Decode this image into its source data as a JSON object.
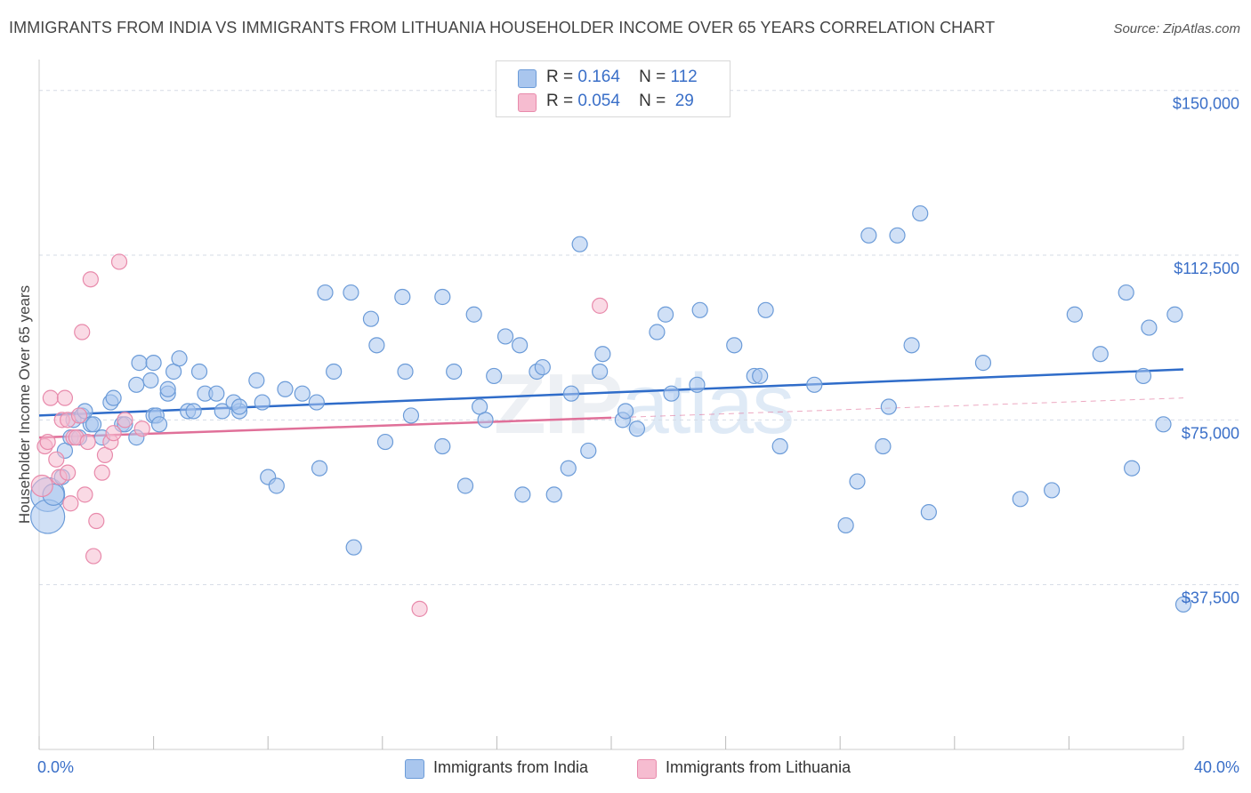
{
  "header": {
    "title": "IMMIGRANTS FROM INDIA VS IMMIGRANTS FROM LITHUANIA HOUSEHOLDER INCOME OVER 65 YEARS CORRELATION CHART",
    "source": "Source: ZipAtlas.com"
  },
  "watermark": {
    "zip": "ZIP",
    "atlas": "atlas"
  },
  "stats": {
    "india": {
      "r_label": "R =",
      "r_value": "0.164",
      "n_label": "N =",
      "n_value": "112"
    },
    "lithuania": {
      "r_label": "R =",
      "r_value": "0.054",
      "n_label": "N =",
      "n_value": "29"
    }
  },
  "legend": {
    "india": "Immigrants from India",
    "lithuania": "Immigrants from Lithuania"
  },
  "colors": {
    "india_fill": "#a9c6ee",
    "india_stroke": "#6b9bd8",
    "india_line": "#2f6cc9",
    "lith_fill": "#f6bcd0",
    "lith_stroke": "#e88aab",
    "lith_line": "#e07099",
    "axis_text": "#3a6fc8",
    "grid": "#d5dbe6"
  },
  "chart_data": {
    "type": "scatter",
    "title": "IMMIGRANTS FROM INDIA VS IMMIGRANTS FROM LITHUANIA HOUSEHOLDER INCOME OVER 65 YEARS CORRELATION CHART",
    "xlabel": "",
    "ylabel": "Householder Income Over 65 years",
    "xlim": [
      0,
      40
    ],
    "ylim": [
      0,
      155000
    ],
    "x_tick_labels": [
      {
        "value": 0,
        "label": "0.0%"
      },
      {
        "value": 40,
        "label": "40.0%"
      }
    ],
    "y_tick_labels": [
      {
        "value": 37500,
        "label": "$37,500"
      },
      {
        "value": 75000,
        "label": "$75,000"
      },
      {
        "value": 112500,
        "label": "$112,500"
      },
      {
        "value": 150000,
        "label": "$150,000"
      }
    ],
    "series": [
      {
        "name": "Immigrants from India",
        "r": 0.164,
        "n": 112,
        "trend": {
          "x": [
            0,
            40
          ],
          "y": [
            76000,
            86500
          ]
        },
        "points": [
          [
            0.3,
            58000,
            3
          ],
          [
            0.3,
            53000,
            3
          ],
          [
            0.5,
            58000,
            2
          ],
          [
            0.8,
            62000,
            1
          ],
          [
            0.9,
            68000,
            1
          ],
          [
            1.1,
            71000,
            1
          ],
          [
            1.4,
            71000,
            1
          ],
          [
            1.2,
            75000,
            1
          ],
          [
            1.5,
            76000,
            1
          ],
          [
            1.6,
            77000,
            1
          ],
          [
            1.8,
            74000,
            1
          ],
          [
            1.9,
            74000,
            1
          ],
          [
            2.2,
            71000,
            1
          ],
          [
            2.5,
            79000,
            1
          ],
          [
            2.6,
            80000,
            1
          ],
          [
            2.9,
            74000,
            1
          ],
          [
            3.4,
            71000,
            1
          ],
          [
            3.0,
            74000,
            1
          ],
          [
            3.4,
            83000,
            1
          ],
          [
            3.5,
            88000,
            1
          ],
          [
            3.9,
            84000,
            1
          ],
          [
            4.0,
            88000,
            1
          ],
          [
            4.0,
            76000,
            1
          ],
          [
            4.1,
            76000,
            1
          ],
          [
            4.2,
            74000,
            1
          ],
          [
            4.5,
            81000,
            1
          ],
          [
            4.5,
            82000,
            1
          ],
          [
            4.7,
            86000,
            1
          ],
          [
            4.9,
            89000,
            1
          ],
          [
            5.2,
            77000,
            1
          ],
          [
            5.4,
            77000,
            1
          ],
          [
            5.6,
            86000,
            1
          ],
          [
            5.8,
            81000,
            1
          ],
          [
            6.2,
            81000,
            1
          ],
          [
            6.4,
            77000,
            1
          ],
          [
            7.0,
            77000,
            1
          ],
          [
            6.8,
            79000,
            1
          ],
          [
            7.0,
            78000,
            1
          ],
          [
            7.6,
            84000,
            1
          ],
          [
            7.8,
            79000,
            1
          ],
          [
            8.0,
            62000,
            1
          ],
          [
            8.3,
            60000,
            1
          ],
          [
            8.6,
            82000,
            1
          ],
          [
            9.2,
            81000,
            1
          ],
          [
            9.7,
            79000,
            1
          ],
          [
            9.8,
            64000,
            1
          ],
          [
            10.0,
            104000,
            1
          ],
          [
            10.3,
            86000,
            1
          ],
          [
            10.9,
            104000,
            1
          ],
          [
            11.0,
            46000,
            1
          ],
          [
            11.6,
            98000,
            1
          ],
          [
            11.8,
            92000,
            1
          ],
          [
            12.1,
            70000,
            1
          ],
          [
            12.7,
            103000,
            1
          ],
          [
            12.8,
            86000,
            1
          ],
          [
            13.0,
            76000,
            1
          ],
          [
            14.1,
            103000,
            1
          ],
          [
            14.1,
            69000,
            1
          ],
          [
            14.5,
            86000,
            1
          ],
          [
            14.9,
            60000,
            1
          ],
          [
            15.2,
            99000,
            1
          ],
          [
            15.4,
            78000,
            1
          ],
          [
            15.6,
            75000,
            1
          ],
          [
            15.9,
            85000,
            1
          ],
          [
            16.3,
            94000,
            1
          ],
          [
            16.8,
            92000,
            1
          ],
          [
            16.9,
            58000,
            1
          ],
          [
            17.4,
            86000,
            1
          ],
          [
            17.6,
            87000,
            1
          ],
          [
            18.0,
            58000,
            1
          ],
          [
            18.5,
            64000,
            1
          ],
          [
            18.6,
            81000,
            1
          ],
          [
            18.9,
            115000,
            1
          ],
          [
            19.2,
            68000,
            1
          ],
          [
            19.6,
            86000,
            1
          ],
          [
            19.7,
            90000,
            1
          ],
          [
            20.4,
            75000,
            1
          ],
          [
            20.5,
            77000,
            1
          ],
          [
            20.9,
            73000,
            1
          ],
          [
            21.6,
            95000,
            1
          ],
          [
            21.9,
            99000,
            1
          ],
          [
            22.1,
            81000,
            1
          ],
          [
            23.0,
            83000,
            1
          ],
          [
            23.1,
            100000,
            1
          ],
          [
            24.3,
            92000,
            1
          ],
          [
            25.0,
            85000,
            1
          ],
          [
            25.2,
            85000,
            1
          ],
          [
            25.4,
            100000,
            1
          ],
          [
            25.9,
            69000,
            1
          ],
          [
            27.1,
            83000,
            1
          ],
          [
            28.2,
            51000,
            1
          ],
          [
            28.6,
            61000,
            1
          ],
          [
            29.0,
            117000,
            1
          ],
          [
            29.5,
            69000,
            1
          ],
          [
            29.7,
            78000,
            1
          ],
          [
            30.0,
            117000,
            1
          ],
          [
            30.5,
            92000,
            1
          ],
          [
            30.8,
            122000,
            1
          ],
          [
            31.1,
            54000,
            1
          ],
          [
            33.0,
            88000,
            1
          ],
          [
            34.3,
            57000,
            1
          ],
          [
            35.4,
            59000,
            1
          ],
          [
            36.2,
            99000,
            1
          ],
          [
            37.1,
            90000,
            1
          ],
          [
            38.0,
            104000,
            1
          ],
          [
            38.2,
            64000,
            1
          ],
          [
            38.6,
            85000,
            1
          ],
          [
            38.8,
            96000,
            1
          ],
          [
            39.3,
            74000,
            1
          ],
          [
            39.7,
            99000,
            1
          ],
          [
            40.0,
            33000,
            1
          ]
        ]
      },
      {
        "name": "Immigrants from Lithuania",
        "r": 0.054,
        "n": 29,
        "trend": {
          "x": [
            0,
            20
          ],
          "y": [
            71000,
            75500
          ]
        },
        "dashed_extension": {
          "x": [
            20,
            40
          ],
          "y": [
            75500,
            80000
          ]
        },
        "points": [
          [
            0.1,
            60000,
            2
          ],
          [
            0.2,
            69000,
            1
          ],
          [
            0.3,
            70000,
            1
          ],
          [
            0.4,
            80000,
            1
          ],
          [
            0.6,
            66000,
            1
          ],
          [
            0.7,
            62000,
            1
          ],
          [
            0.8,
            75000,
            1
          ],
          [
            0.9,
            80000,
            1
          ],
          [
            1.0,
            75000,
            1
          ],
          [
            1.0,
            63000,
            1
          ],
          [
            1.1,
            56000,
            1
          ],
          [
            1.2,
            71000,
            1
          ],
          [
            1.3,
            71000,
            1
          ],
          [
            1.4,
            76000,
            1
          ],
          [
            1.5,
            95000,
            1
          ],
          [
            1.6,
            58000,
            1
          ],
          [
            1.7,
            70000,
            1
          ],
          [
            1.8,
            107000,
            1
          ],
          [
            1.9,
            44000,
            1
          ],
          [
            2.0,
            52000,
            1
          ],
          [
            2.2,
            63000,
            1
          ],
          [
            2.3,
            67000,
            1
          ],
          [
            2.5,
            70000,
            1
          ],
          [
            2.8,
            111000,
            1
          ],
          [
            3.0,
            75000,
            1
          ],
          [
            3.6,
            73000,
            1
          ],
          [
            13.3,
            32000,
            1
          ],
          [
            19.6,
            101000,
            1
          ],
          [
            2.6,
            72000,
            1
          ]
        ]
      }
    ]
  }
}
